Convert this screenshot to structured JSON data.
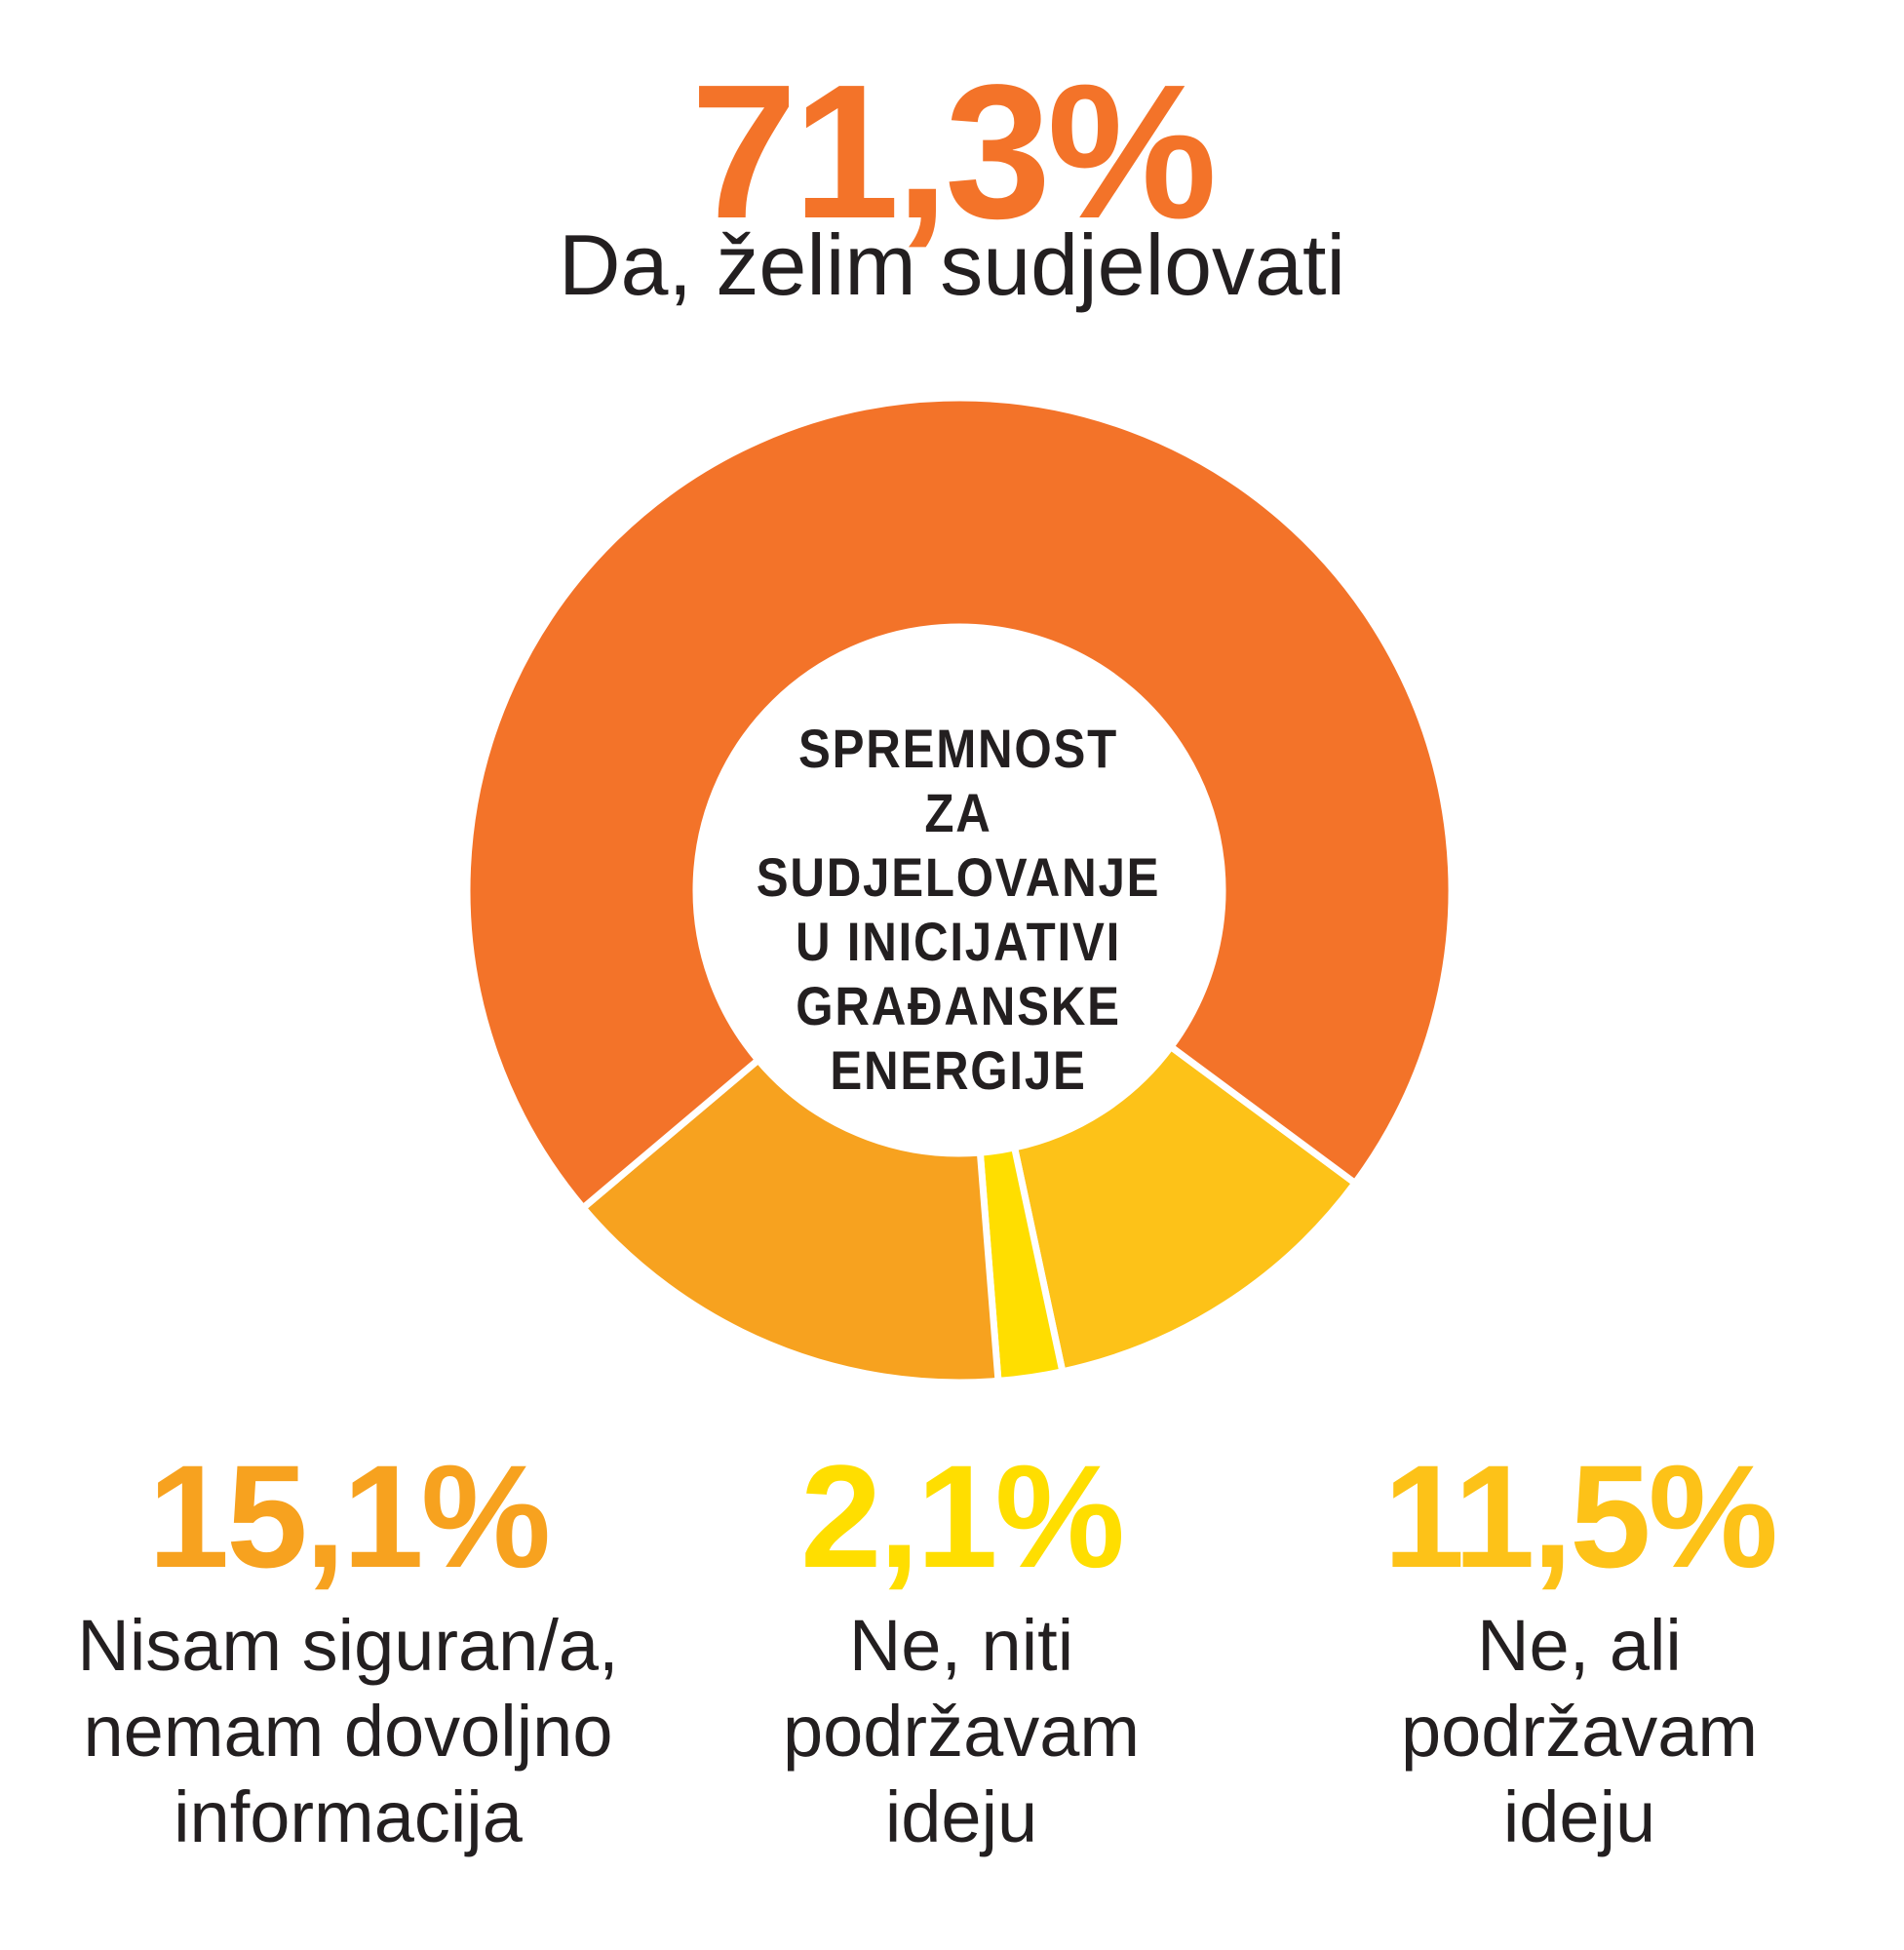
{
  "chart_data": {
    "type": "pie",
    "variant": "donut",
    "title": "SPREMNOST ZA SUDJELOVANJE U INICIJATIVI GRAĐANSKE ENERGIJE",
    "title_lines": [
      "SPREMNOST",
      "ZA",
      "SUDJELOVANJE",
      "U INICIJATIVI",
      "GRAĐANSKE",
      "ENERGIJE"
    ],
    "series": [
      {
        "name": "Da, želim sudjelovati",
        "value": 71.3,
        "value_label": "71,3%",
        "color": "#f37329",
        "label_lines": [
          "Da, želim sudjelovati"
        ]
      },
      {
        "name": "Ne, ali podržavam ideju",
        "value": 11.5,
        "value_label": "11,5%",
        "color": "#fdc218",
        "label_lines": [
          "Ne, ali",
          "podržavam",
          "ideju"
        ]
      },
      {
        "name": "Ne, niti podržavam ideju",
        "value": 2.1,
        "value_label": "2,1%",
        "color": "#ffde00",
        "label_lines": [
          "Ne, niti",
          "podržavam",
          "ideju"
        ]
      },
      {
        "name": "Nisam siguran/a, nemam dovoljno informacija",
        "value": 15.1,
        "value_label": "15,1%",
        "color": "#f7a21f",
        "label_lines": [
          "Nisam siguran/a,",
          "nemam dovoljno",
          "informacija"
        ]
      }
    ]
  }
}
